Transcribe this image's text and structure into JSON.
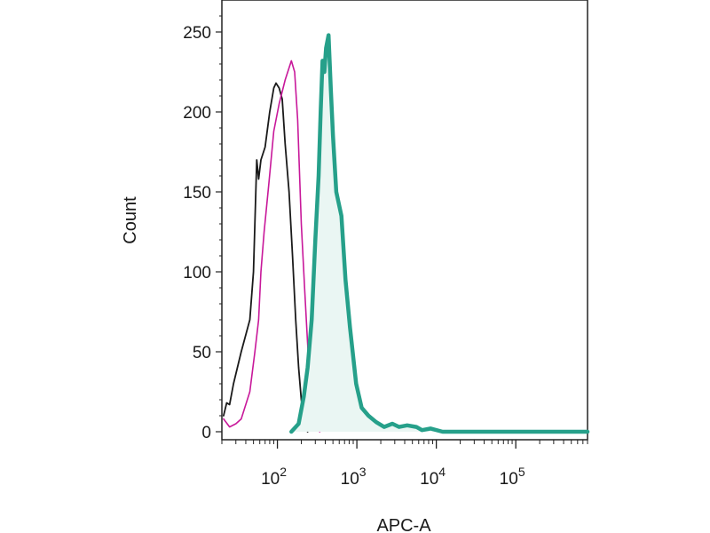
{
  "chart_data": {
    "type": "line",
    "xlabel": "APC-A",
    "ylabel": "Count",
    "x_scale": "log",
    "xlim": [
      20,
      800000
    ],
    "ylim": [
      -5,
      270
    ],
    "grid": false,
    "y_ticks": [
      {
        "value": 0,
        "label": "0"
      },
      {
        "value": 50,
        "label": "50"
      },
      {
        "value": 100,
        "label": "100"
      },
      {
        "value": 150,
        "label": "150"
      },
      {
        "value": 200,
        "label": "200"
      },
      {
        "value": 250,
        "label": "250"
      }
    ],
    "x_ticks": [
      {
        "value": 100,
        "base": "10",
        "exp": "2"
      },
      {
        "value": 1000,
        "base": "10",
        "exp": "3"
      },
      {
        "value": 10000,
        "base": "10",
        "exp": "4"
      },
      {
        "value": 100000,
        "base": "10",
        "exp": "5"
      }
    ],
    "series": [
      {
        "color": "#1a1a1a",
        "fill": false,
        "line_width": 1.8,
        "points": [
          [
            21,
            10
          ],
          [
            23,
            18
          ],
          [
            25,
            17
          ],
          [
            28,
            30
          ],
          [
            35,
            50
          ],
          [
            45,
            70
          ],
          [
            50,
            100
          ],
          [
            55,
            170
          ],
          [
            58,
            158
          ],
          [
            62,
            170
          ],
          [
            70,
            178
          ],
          [
            80,
            200
          ],
          [
            90,
            215
          ],
          [
            96,
            218
          ],
          [
            105,
            215
          ],
          [
            115,
            208
          ],
          [
            125,
            180
          ],
          [
            140,
            150
          ],
          [
            155,
            110
          ],
          [
            170,
            70
          ],
          [
            185,
            40
          ],
          [
            200,
            20
          ],
          [
            220,
            5
          ],
          [
            240,
            0
          ]
        ]
      },
      {
        "color": "#c8189a",
        "fill": false,
        "line_width": 1.6,
        "points": [
          [
            21,
            8
          ],
          [
            25,
            3
          ],
          [
            30,
            5
          ],
          [
            35,
            8
          ],
          [
            45,
            25
          ],
          [
            52,
            50
          ],
          [
            58,
            70
          ],
          [
            62,
            100
          ],
          [
            68,
            125
          ],
          [
            78,
            155
          ],
          [
            90,
            188
          ],
          [
            105,
            205
          ],
          [
            125,
            220
          ],
          [
            150,
            232
          ],
          [
            165,
            225
          ],
          [
            180,
            195
          ],
          [
            200,
            130
          ],
          [
            220,
            90
          ],
          [
            240,
            55
          ],
          [
            260,
            25
          ],
          [
            285,
            12
          ],
          [
            310,
            5
          ],
          [
            340,
            0
          ]
        ]
      },
      {
        "color": "#26a08a",
        "fill": true,
        "fill_color": "#eaf6f3",
        "line_width": 4.5,
        "points": [
          [
            150,
            0
          ],
          [
            185,
            5
          ],
          [
            215,
            22
          ],
          [
            240,
            40
          ],
          [
            270,
            70
          ],
          [
            300,
            120
          ],
          [
            330,
            160
          ],
          [
            350,
            200
          ],
          [
            370,
            232
          ],
          [
            390,
            225
          ],
          [
            410,
            240
          ],
          [
            440,
            248
          ],
          [
            470,
            215
          ],
          [
            500,
            185
          ],
          [
            550,
            150
          ],
          [
            640,
            135
          ],
          [
            720,
            95
          ],
          [
            820,
            65
          ],
          [
            980,
            30
          ],
          [
            1150,
            15
          ],
          [
            1400,
            10
          ],
          [
            1750,
            6
          ],
          [
            2200,
            3
          ],
          [
            2800,
            5
          ],
          [
            3400,
            3
          ],
          [
            4300,
            4
          ],
          [
            5600,
            3
          ],
          [
            6600,
            1
          ],
          [
            8500,
            2
          ],
          [
            12000,
            0
          ],
          [
            800000,
            0
          ]
        ]
      }
    ]
  }
}
